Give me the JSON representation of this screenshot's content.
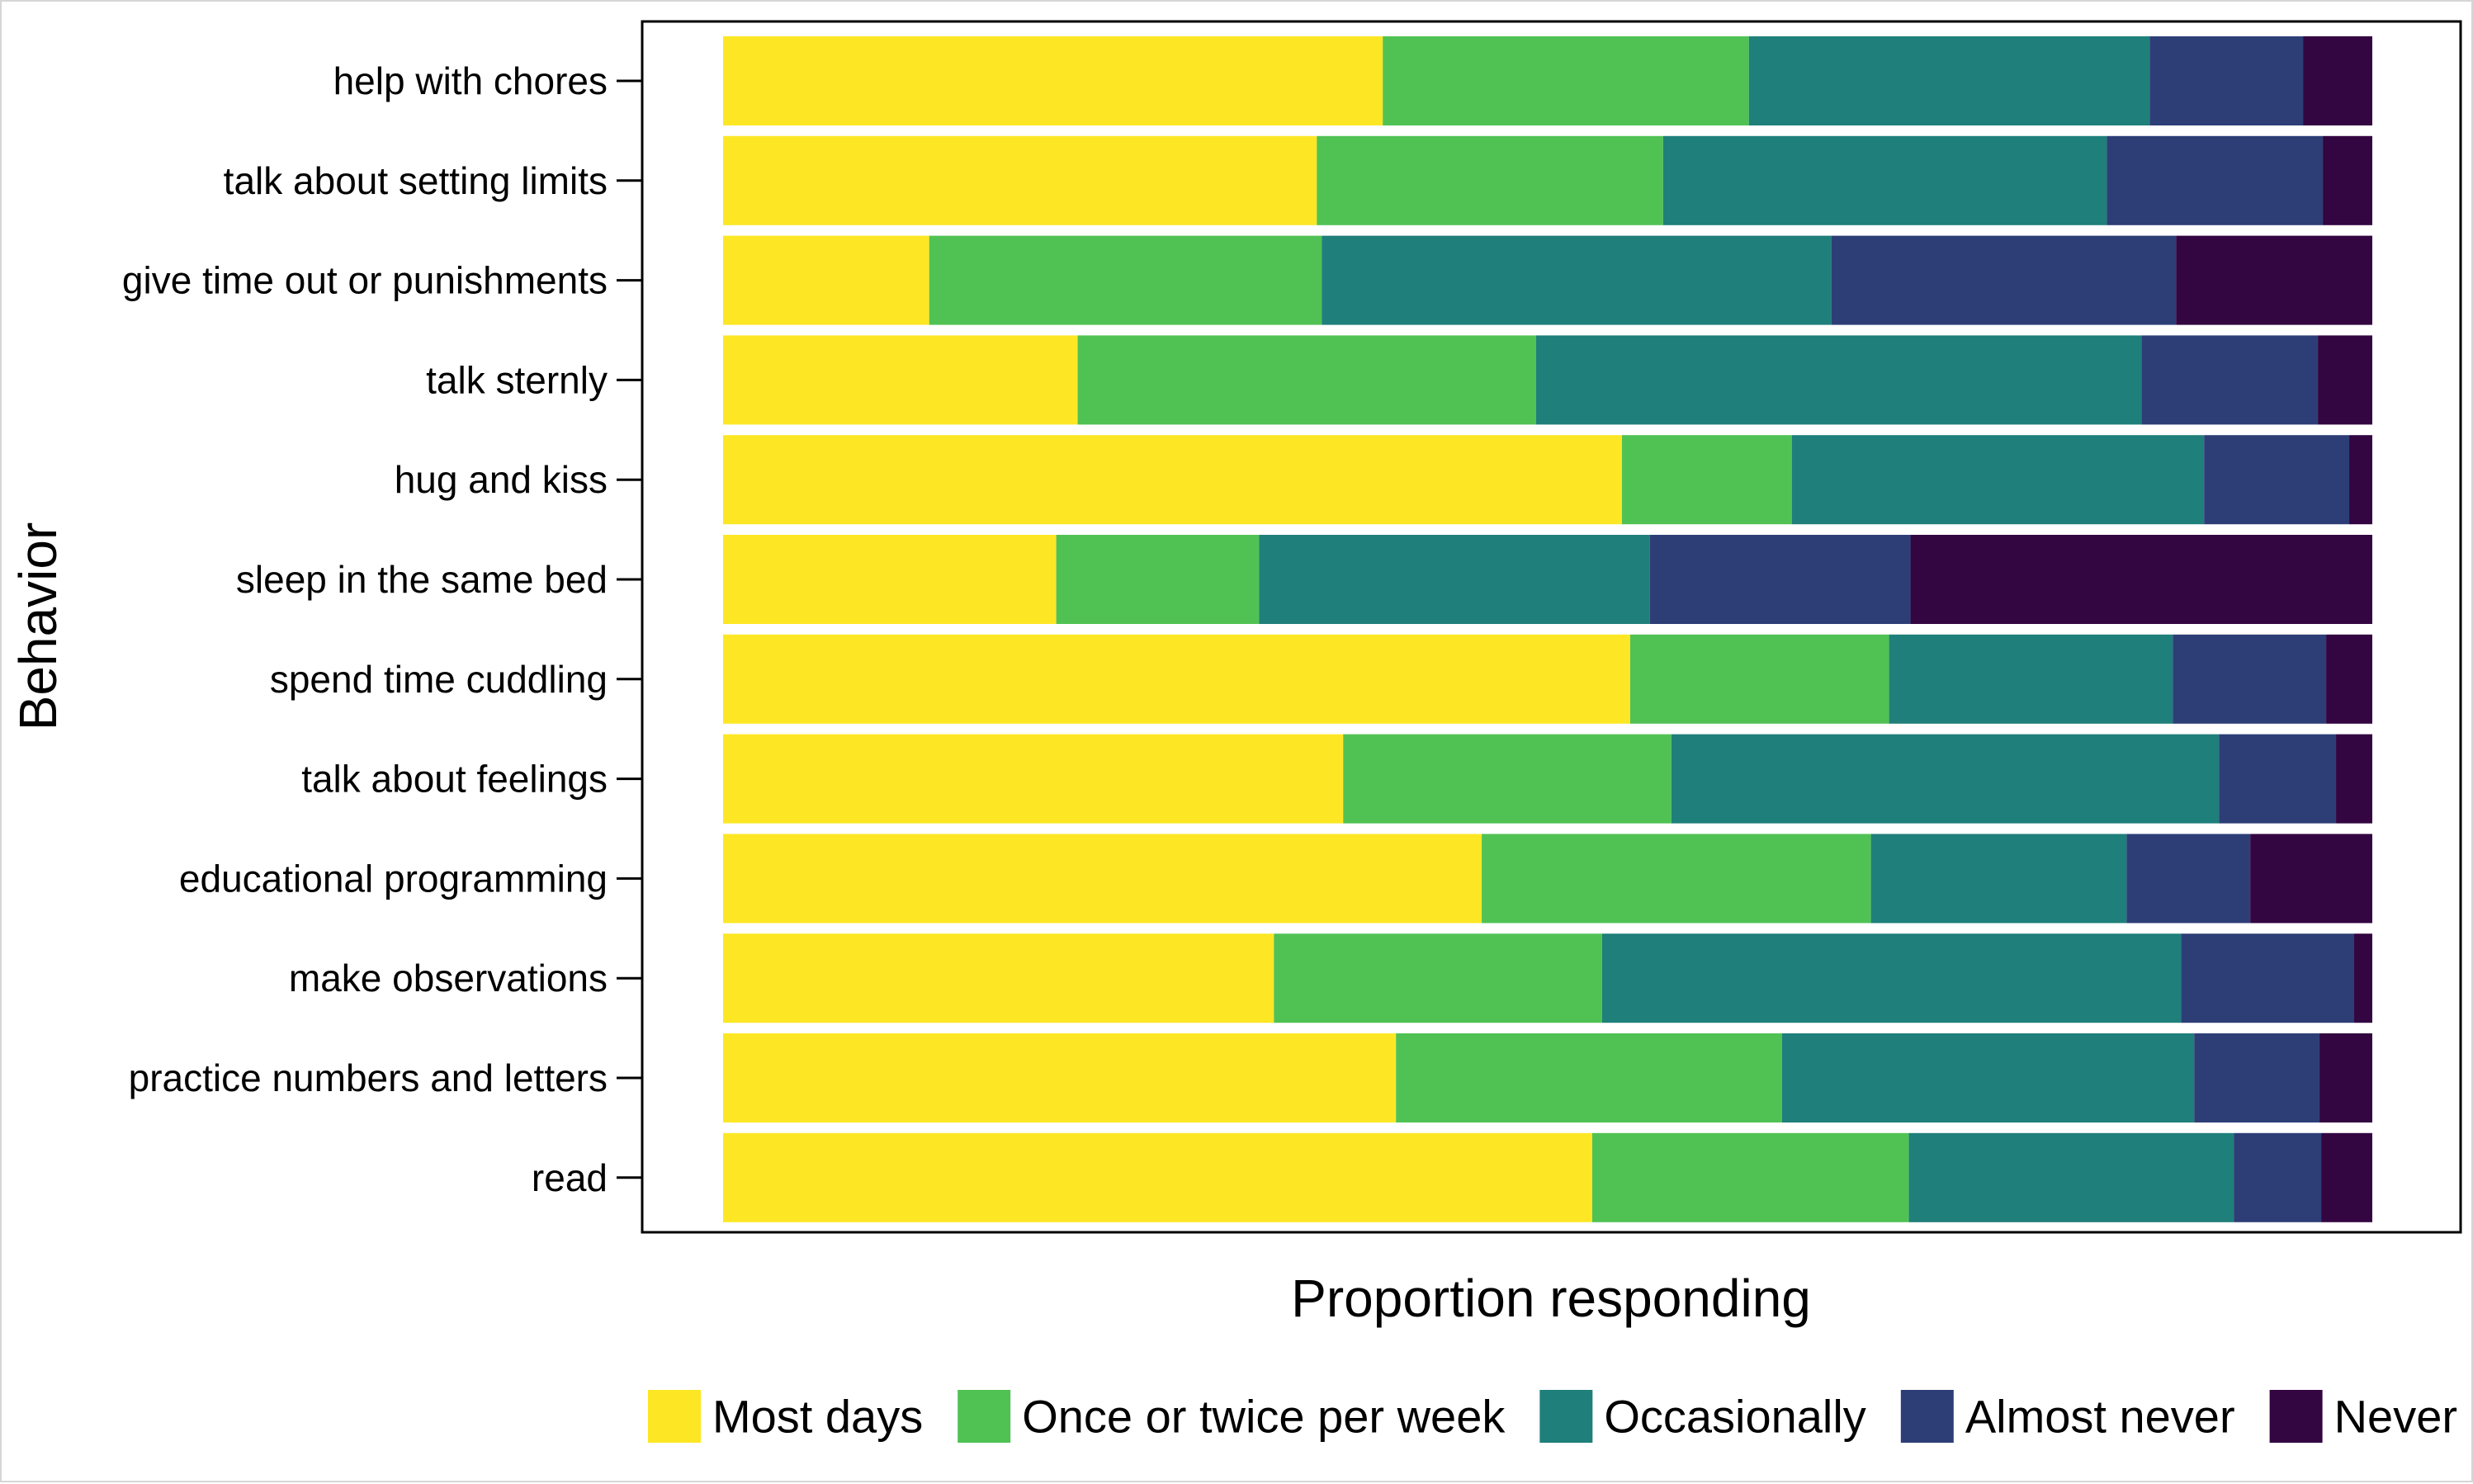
{
  "chart_data": {
    "type": "bar",
    "orientation": "horizontal",
    "stacked": true,
    "normalized": true,
    "xlabel": "Proportion responding",
    "ylabel": "Behavior",
    "xlim": [
      0,
      1
    ],
    "show_x_ticks": false,
    "grid": false,
    "legend_position": "bottom",
    "categories": [
      "help with chores",
      "talk about setting limits",
      "give time out or punishments",
      "talk sternly",
      "hug and kiss",
      "sleep in the same bed",
      "spend time cuddling",
      "talk about feelings",
      "educational programming",
      "make observations",
      "practice numbers and letters",
      "read"
    ],
    "series": [
      {
        "name": "Most days",
        "color": "#FDE725",
        "values": [
          0.4,
          0.36,
          0.125,
          0.215,
          0.545,
          0.202,
          0.55,
          0.376,
          0.46,
          0.334,
          0.408,
          0.527
        ]
      },
      {
        "name": "Once or twice per week",
        "color": "#50C254",
        "values": [
          0.222,
          0.21,
          0.238,
          0.278,
          0.103,
          0.123,
          0.157,
          0.199,
          0.236,
          0.199,
          0.234,
          0.192
        ]
      },
      {
        "name": "Occasionally",
        "color": "#1F7F7A",
        "values": [
          0.243,
          0.269,
          0.309,
          0.367,
          0.25,
          0.237,
          0.172,
          0.332,
          0.155,
          0.351,
          0.25,
          0.197
        ]
      },
      {
        "name": "Almost never",
        "color": "#2D3E77",
        "values": [
          0.093,
          0.131,
          0.209,
          0.107,
          0.088,
          0.158,
          0.093,
          0.071,
          0.075,
          0.105,
          0.076,
          0.053
        ]
      },
      {
        "name": "Never",
        "color": "#330541",
        "values": [
          0.042,
          0.03,
          0.119,
          0.033,
          0.014,
          0.28,
          0.028,
          0.022,
          0.074,
          0.011,
          0.032,
          0.031
        ]
      }
    ]
  }
}
